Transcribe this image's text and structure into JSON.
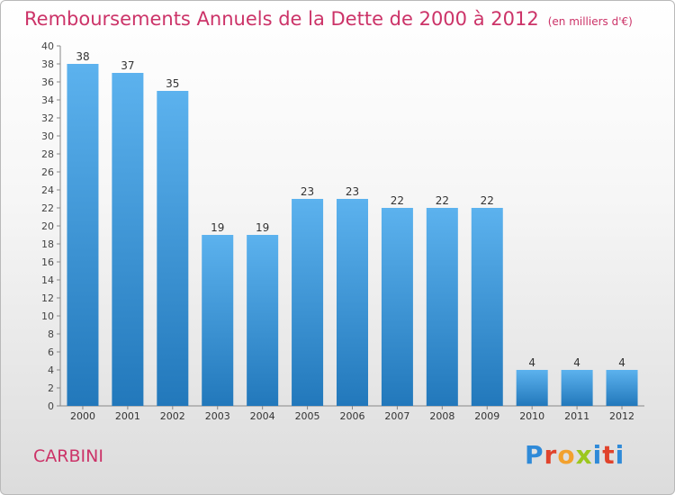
{
  "title": "Remboursements Annuels de la Dette de 2000 à 2012",
  "unit": "(en milliers d'€)",
  "commune": "CARBINI",
  "logo": {
    "text": "Proxiti"
  },
  "colors": {
    "bar_light": "#5cb2ee",
    "bar_dark": "#2278bb",
    "title": "#cc3368"
  },
  "chart_data": {
    "type": "bar",
    "categories": [
      "2000",
      "2001",
      "2002",
      "2003",
      "2004",
      "2005",
      "2006",
      "2007",
      "2008",
      "2009",
      "2010",
      "2011",
      "2012"
    ],
    "values": [
      38,
      37,
      35,
      19,
      19,
      23,
      23,
      22,
      22,
      22,
      4,
      4,
      4
    ],
    "title": "Remboursements Annuels de la Dette de 2000 à 2012",
    "subtitle": "(en milliers d'€)",
    "xlabel": "",
    "ylabel": "",
    "ylim": [
      0,
      40
    ],
    "yticks": [
      0,
      2,
      4,
      6,
      8,
      10,
      12,
      14,
      16,
      18,
      20,
      22,
      24,
      26,
      28,
      30,
      32,
      34,
      36,
      38,
      40
    ],
    "data_labels": true,
    "grid": false,
    "legend": "none"
  }
}
